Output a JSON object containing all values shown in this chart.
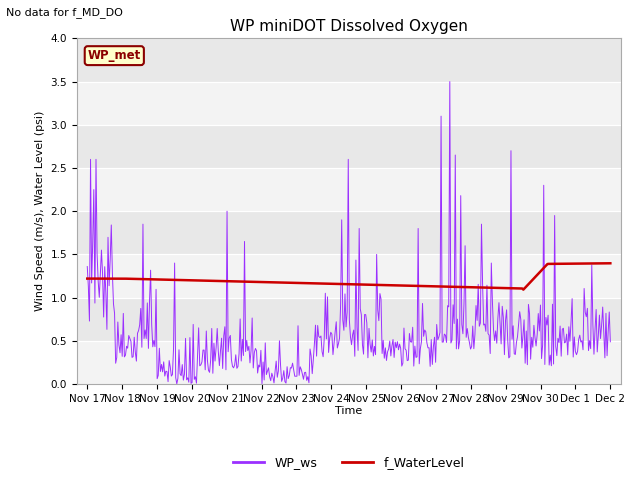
{
  "title": "WP miniDOT Dissolved Oxygen",
  "no_data_text": "No data for f_MD_DO",
  "ylabel": "Wind Speed (m/s), Water Level (psi)",
  "xlabel": "Time",
  "ylim": [
    0.0,
    4.0
  ],
  "yticks": [
    0.0,
    0.5,
    1.0,
    1.5,
    2.0,
    2.5,
    3.0,
    3.5,
    4.0
  ],
  "xtick_positions": [
    0,
    1,
    2,
    3,
    4,
    5,
    6,
    7,
    8,
    9,
    10,
    11,
    12,
    13,
    14,
    15
  ],
  "xtick_labels": [
    "Nov 17",
    "Nov 18",
    "Nov 19",
    "Nov 20",
    "Nov 21",
    "Nov 22",
    "Nov 23",
    "Nov 24",
    "Nov 25",
    "Nov 26",
    "Nov 27",
    "Nov 28",
    "Nov 29",
    "Nov 30",
    "Dec 1",
    "Dec 2"
  ],
  "wp_ws_color": "#9B30FF",
  "f_wl_color": "#CC0000",
  "legend_label_ws": "WP_ws",
  "legend_label_wl": "f_WaterLevel",
  "wp_met_box_text": "WP_met",
  "wp_met_box_facecolor": "#FFFFCC",
  "wp_met_box_edgecolor": "#8B0000",
  "plot_bg_color": "#E8E8E8",
  "fig_bg_color": "#FFFFFF",
  "title_fontsize": 11,
  "label_fontsize": 8,
  "tick_fontsize": 7.5,
  "no_data_fontsize": 8,
  "legend_fontsize": 9
}
